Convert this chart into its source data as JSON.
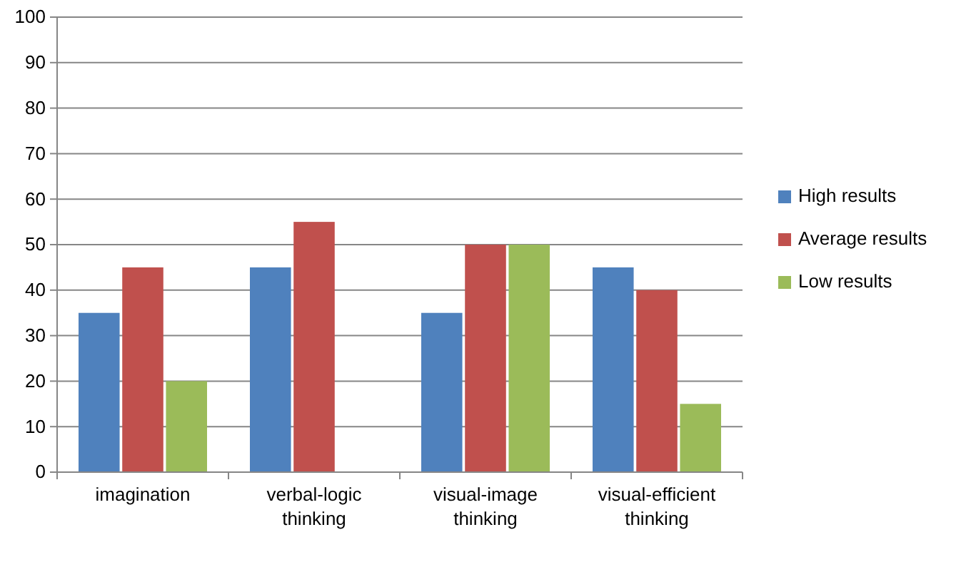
{
  "chart_data": {
    "type": "bar",
    "categories": [
      "imagination",
      "verbal-logic thinking",
      "visual-image thinking",
      "visual-efficient thinking"
    ],
    "series": [
      {
        "name": "High results",
        "color": "#4f81bd",
        "values": [
          35,
          45,
          35,
          45
        ]
      },
      {
        "name": "Average results",
        "color": "#c0504d",
        "values": [
          45,
          55,
          50,
          40
        ]
      },
      {
        "name": "Low results",
        "color": "#9bbb59",
        "values": [
          20,
          0,
          50,
          15
        ]
      }
    ],
    "ylim": [
      0,
      100
    ],
    "yticks": [
      0,
      10,
      20,
      30,
      40,
      50,
      60,
      70,
      80,
      90,
      100
    ],
    "grid": "y",
    "legend": "right"
  }
}
